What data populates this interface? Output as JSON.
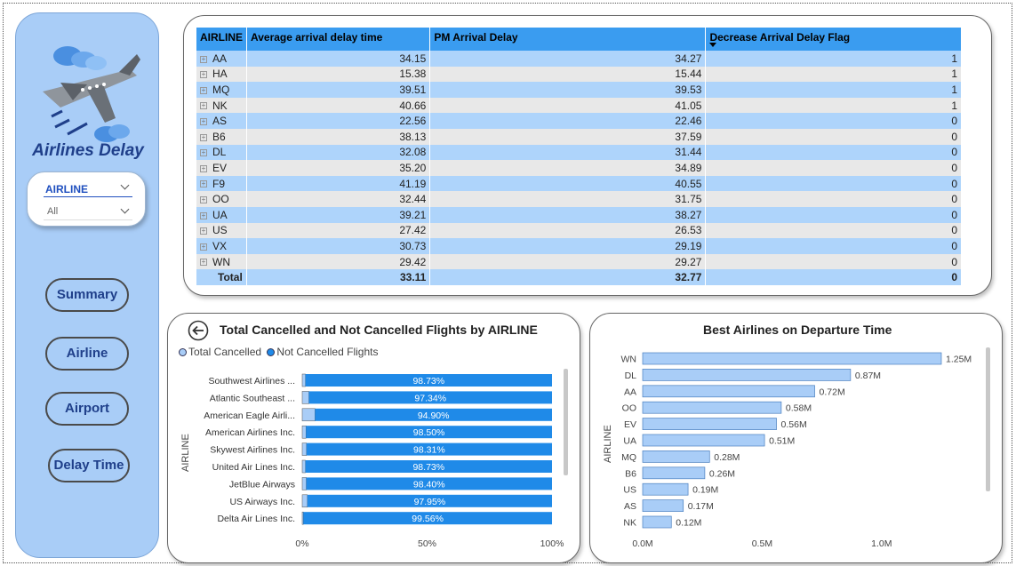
{
  "sidebar": {
    "title": "Airlines Delay",
    "slicer": {
      "label": "AIRLINE",
      "value": "All"
    },
    "nav": [
      "Summary",
      "Airline",
      "Airport",
      "Delay Time"
    ]
  },
  "table": {
    "headers": [
      "AIRLINE",
      "Average arrival delay time",
      "PM Arrival Delay",
      "Decrease Arrival Delay Flag"
    ],
    "rows": [
      [
        "AA",
        "34.15",
        "34.27",
        "1"
      ],
      [
        "HA",
        "15.38",
        "15.44",
        "1"
      ],
      [
        "MQ",
        "39.51",
        "39.53",
        "1"
      ],
      [
        "NK",
        "40.66",
        "41.05",
        "1"
      ],
      [
        "AS",
        "22.56",
        "22.46",
        "0"
      ],
      [
        "B6",
        "38.13",
        "37.59",
        "0"
      ],
      [
        "DL",
        "32.08",
        "31.44",
        "0"
      ],
      [
        "EV",
        "35.20",
        "34.89",
        "0"
      ],
      [
        "F9",
        "41.19",
        "40.55",
        "0"
      ],
      [
        "OO",
        "32.44",
        "31.75",
        "0"
      ],
      [
        "UA",
        "39.21",
        "38.27",
        "0"
      ],
      [
        "US",
        "27.42",
        "26.53",
        "0"
      ],
      [
        "VX",
        "30.73",
        "29.19",
        "0"
      ],
      [
        "WN",
        "29.42",
        "29.27",
        "0"
      ]
    ],
    "total": [
      "Total",
      "33.11",
      "32.77",
      "0"
    ]
  },
  "colors": {
    "accent": "#1f8ae8",
    "light_bar": "#a9cdf7",
    "sidebar": "#a9cdf7",
    "title_blue": "#1f3f8a"
  },
  "chart_data": [
    {
      "type": "bar",
      "orientation": "horizontal",
      "stacked": "100%",
      "title": "Total Cancelled and Not Cancelled Flights by AIRLINE",
      "ylabel": "AIRLINE",
      "legend": [
        "Total Cancelled",
        "Not Cancelled Flights"
      ],
      "categories": [
        "Southwest Airlines ...",
        "Atlantic Southeast ...",
        "American Eagle Airli...",
        "American Airlines Inc.",
        "Skywest Airlines Inc.",
        "United Air Lines Inc.",
        "JetBlue Airways",
        "US Airways Inc.",
        "Delta Air Lines Inc."
      ],
      "series": [
        {
          "name": "Total Cancelled",
          "values": [
            1.27,
            2.66,
            5.1,
            1.5,
            1.69,
            1.27,
            1.6,
            2.05,
            0.44
          ]
        },
        {
          "name": "Not Cancelled Flights",
          "values": [
            98.73,
            97.34,
            94.9,
            98.5,
            98.31,
            98.73,
            98.4,
            97.95,
            99.56
          ]
        }
      ],
      "data_labels": [
        "98.73%",
        "97.34%",
        "94.90%",
        "98.50%",
        "98.31%",
        "98.73%",
        "98.40%",
        "97.95%",
        "99.56%"
      ],
      "xticks": [
        "0%",
        "50%",
        "100%"
      ],
      "xlim": [
        0,
        100
      ]
    },
    {
      "type": "bar",
      "orientation": "horizontal",
      "title": "Best Airlines on Departure Time",
      "ylabel": "AIRLINE",
      "categories": [
        "WN",
        "DL",
        "AA",
        "OO",
        "EV",
        "UA",
        "MQ",
        "B6",
        "US",
        "AS",
        "NK"
      ],
      "values": [
        1.25,
        0.87,
        0.72,
        0.58,
        0.56,
        0.51,
        0.28,
        0.26,
        0.19,
        0.17,
        0.12
      ],
      "data_labels": [
        "1.25M",
        "0.87M",
        "0.72M",
        "0.58M",
        "0.56M",
        "0.51M",
        "0.28M",
        "0.26M",
        "0.19M",
        "0.17M",
        "0.12M"
      ],
      "xticks": [
        "0.0M",
        "0.5M",
        "1.0M"
      ],
      "xlim": [
        0,
        1.25
      ]
    }
  ]
}
